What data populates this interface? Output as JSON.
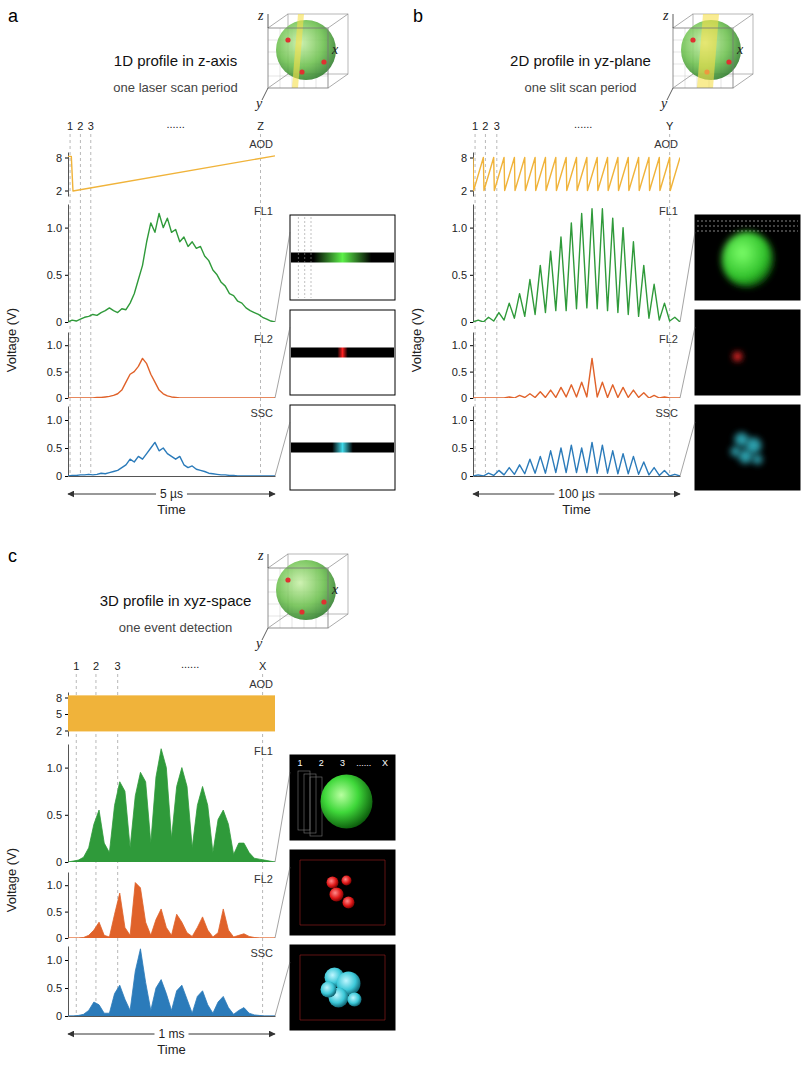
{
  "chart_data": [
    {
      "type": "line",
      "panel": "a",
      "title": "1D profile in z-axis",
      "subtitle": "one laser scan period",
      "axis_icon": [
        "z",
        "x",
        "y"
      ],
      "xlabel": "Time",
      "ylabel": "Voltage (V)",
      "duration": "5 µs",
      "xlim": [
        0,
        5
      ],
      "tick_labels": "y",
      "ellipsis": "......",
      "markers": [
        {
          "label": "1",
          "x": 0.05
        },
        {
          "label": "2",
          "x": 0.3
        },
        {
          "label": "3",
          "x": 0.55
        },
        {
          "label": "Z",
          "x": 4.65
        }
      ],
      "x": [
        0,
        0.1,
        0.2,
        0.3,
        0.4,
        0.5,
        0.6,
        0.7,
        0.8,
        0.9,
        1,
        1.1,
        1.2,
        1.3,
        1.4,
        1.5,
        1.6,
        1.7,
        1.8,
        1.9,
        2,
        2.1,
        2.2,
        2.3,
        2.4,
        2.5,
        2.6,
        2.7,
        2.8,
        2.9,
        3,
        3.1,
        3.2,
        3.3,
        3.4,
        3.5,
        3.6,
        3.7,
        3.8,
        3.9,
        4,
        4.1,
        4.2,
        4.3,
        4.4,
        4.5,
        4.6,
        4.7,
        4.8,
        4.9,
        5
      ],
      "series": [
        {
          "name": "AOD",
          "color": "#f0b33a",
          "ylim": [
            1,
            9
          ],
          "yticks": [
            2,
            8
          ],
          "x": [
            0,
            0.08,
            0.12,
            5
          ],
          "values": [
            8.2,
            8.2,
            1.9,
            8.3
          ]
        },
        {
          "name": "FL1",
          "color": "#2f9a3a",
          "ylim": [
            0,
            1.25
          ],
          "yticks": [
            0,
            0.5,
            {
              "value": 1,
              "label": "1.0"
            }
          ],
          "values": [
            0,
            0.02,
            0.01,
            0.03,
            0.05,
            0.06,
            0.08,
            0.07,
            0.1,
            0.12,
            0.15,
            0.12,
            0.1,
            0.14,
            0.13,
            0.2,
            0.3,
            0.45,
            0.6,
            0.85,
            1.05,
            0.95,
            1.15,
            1,
            1.1,
            0.95,
            0.98,
            0.85,
            0.9,
            0.8,
            0.85,
            0.78,
            0.8,
            0.7,
            0.65,
            0.55,
            0.5,
            0.42,
            0.38,
            0.3,
            0.28,
            0.22,
            0.2,
            0.15,
            0.12,
            0.1,
            0.08,
            0.05,
            0.03,
            0.01,
            0
          ]
        },
        {
          "name": "FL2",
          "color": "#e0622a",
          "ylim": [
            0,
            1.25
          ],
          "yticks": [
            0,
            0.5,
            {
              "value": 1,
              "label": "1.0"
            }
          ],
          "values": [
            0,
            0,
            0,
            0,
            0,
            0,
            0,
            0.01,
            0.01,
            0.02,
            0.03,
            0.05,
            0.08,
            0.15,
            0.3,
            0.45,
            0.5,
            0.6,
            0.75,
            0.65,
            0.45,
            0.3,
            0.15,
            0.08,
            0.04,
            0.02,
            0.01,
            0,
            0,
            0,
            0,
            0,
            0,
            0,
            0,
            0,
            0,
            0,
            0,
            0,
            0,
            0,
            0,
            0,
            0,
            0,
            0,
            0,
            0,
            0,
            0
          ]
        },
        {
          "name": "SSC",
          "color": "#2b7bba",
          "ylim": [
            0,
            1.25
          ],
          "yticks": [
            0,
            0.5,
            {
              "value": 1,
              "label": "1.0"
            }
          ],
          "values": [
            0,
            0.01,
            0.01,
            0.02,
            0.02,
            0.03,
            0.02,
            0.03,
            0.05,
            0.04,
            0.06,
            0.08,
            0.1,
            0.15,
            0.2,
            0.3,
            0.25,
            0.35,
            0.3,
            0.4,
            0.5,
            0.6,
            0.45,
            0.5,
            0.4,
            0.35,
            0.3,
            0.35,
            0.2,
            0.15,
            0.18,
            0.12,
            0.1,
            0.08,
            0.05,
            0.04,
            0.03,
            0.02,
            0.02,
            0.01,
            0.01,
            0,
            0,
            0,
            0,
            0,
            0,
            0,
            0,
            0,
            0
          ]
        }
      ]
    },
    {
      "type": "line",
      "panel": "b",
      "title": "2D profile in yz-plane",
      "subtitle": "one slit scan period",
      "axis_icon": [
        "z",
        "x",
        "y"
      ],
      "xlabel": "Time",
      "ylabel": "Voltage (V)",
      "duration": "100 µs",
      "xlim": [
        0,
        100
      ],
      "tick_labels": "y",
      "ellipsis": "......",
      "markers": [
        {
          "label": "1",
          "x": 1
        },
        {
          "label": "2",
          "x": 6
        },
        {
          "label": "3",
          "x": 11.5
        },
        {
          "label": "Y",
          "x": 95
        }
      ],
      "x": [
        0,
        2.5,
        5,
        7.5,
        10,
        12.5,
        15,
        17.5,
        20,
        22.5,
        25,
        27.5,
        30,
        32.5,
        35,
        37.5,
        40,
        42.5,
        45,
        47.5,
        50,
        52.5,
        55,
        57.5,
        60,
        62.5,
        65,
        67.5,
        70,
        72.5,
        75,
        77.5,
        80,
        82.5,
        85,
        87.5,
        90,
        92.5,
        95,
        97.5,
        100
      ],
      "series": [
        {
          "name": "AOD",
          "color": "#f0b33a",
          "ylim": [
            1,
            9
          ],
          "yticks": [
            2,
            8
          ],
          "x": [
            0,
            0.3,
            5,
            5.3,
            10,
            10.3,
            15,
            15.3,
            20,
            20.3,
            25,
            25.3,
            30,
            30.3,
            35,
            35.3,
            40,
            40.3,
            45,
            45.3,
            50,
            50.3,
            55,
            55.3,
            60,
            60.3,
            65,
            65.3,
            70,
            70.3,
            75,
            75.3,
            80,
            80.3,
            85,
            85.3,
            90,
            90.3,
            95,
            95.3,
            100
          ],
          "values": [
            8,
            2,
            8,
            2,
            8,
            2,
            8,
            2,
            8,
            2,
            8,
            2,
            8,
            2,
            8,
            2,
            8,
            2,
            8,
            2,
            8,
            2,
            8,
            2,
            8,
            2,
            8,
            2,
            8,
            2,
            8,
            2,
            8,
            2,
            8,
            2,
            8,
            2,
            8,
            2,
            8
          ]
        },
        {
          "name": "FL1",
          "color": "#2f9a3a",
          "ylim": [
            0,
            1.25
          ],
          "yticks": [
            0,
            0.5,
            {
              "value": 1,
              "label": "1.0"
            }
          ],
          "values": [
            0,
            0.02,
            0,
            0.05,
            0.01,
            0.1,
            0.02,
            0.2,
            0.04,
            0.3,
            0.06,
            0.45,
            0.08,
            0.6,
            0.1,
            0.75,
            0.12,
            0.9,
            0.12,
            1.05,
            0.14,
            1.15,
            0.15,
            1.2,
            0.14,
            1.2,
            0.12,
            1.1,
            0.1,
            1,
            0.08,
            0.85,
            0.06,
            0.6,
            0.04,
            0.4,
            0.02,
            0.2,
            0.01,
            0.05,
            0
          ]
        },
        {
          "name": "FL2",
          "color": "#e0622a",
          "ylim": [
            0,
            1.25
          ],
          "yticks": [
            0,
            0.5,
            {
              "value": 1,
              "label": "1.0"
            }
          ],
          "values": [
            0,
            0,
            0,
            0,
            0,
            0,
            0,
            0.02,
            0,
            0.05,
            0.01,
            0.08,
            0.01,
            0.12,
            0.01,
            0.15,
            0.01,
            0.2,
            0.02,
            0.25,
            0.02,
            0.3,
            0.02,
            0.75,
            0.02,
            0.3,
            0.01,
            0.25,
            0.01,
            0.2,
            0.01,
            0.15,
            0.01,
            0.1,
            0,
            0.05,
            0,
            0.02,
            0,
            0,
            0
          ]
        },
        {
          "name": "SSC",
          "color": "#2b7bba",
          "ylim": [
            0,
            1.25
          ],
          "yticks": [
            0,
            0.5,
            {
              "value": 1,
              "label": "1.0"
            }
          ],
          "values": [
            0,
            0.02,
            0,
            0.05,
            0.01,
            0.1,
            0.02,
            0.15,
            0.03,
            0.2,
            0.04,
            0.3,
            0.05,
            0.35,
            0.05,
            0.45,
            0.06,
            0.5,
            0.06,
            0.55,
            0.06,
            0.5,
            0.06,
            0.6,
            0.05,
            0.55,
            0.05,
            0.45,
            0.04,
            0.4,
            0.04,
            0.35,
            0.03,
            0.25,
            0.02,
            0.15,
            0.01,
            0.1,
            0,
            0.03,
            0
          ]
        }
      ]
    },
    {
      "type": "line",
      "panel": "c",
      "title": "3D profile in xyz-space",
      "subtitle": "one event detection",
      "axis_icon": [
        "z",
        "x",
        "y"
      ],
      "xlabel": "Time",
      "ylabel": "Voltage (V)",
      "duration": "1 ms",
      "xlim": [
        0,
        1000
      ],
      "tick_labels": "y",
      "ellipsis": "......",
      "inset_labels": [
        "1",
        "2",
        "3",
        "......",
        "X"
      ],
      "markers": [
        {
          "label": "1",
          "x": 40
        },
        {
          "label": "2",
          "x": 135
        },
        {
          "label": "3",
          "x": 240
        },
        {
          "label": "X",
          "x": 940
        }
      ],
      "x": [
        0,
        25,
        50,
        75,
        100,
        125,
        150,
        175,
        200,
        225,
        250,
        275,
        300,
        325,
        350,
        375,
        400,
        425,
        450,
        475,
        500,
        525,
        550,
        575,
        600,
        625,
        650,
        675,
        700,
        725,
        750,
        775,
        800,
        825,
        850,
        875,
        900,
        925,
        950,
        975,
        1000
      ],
      "series": [
        {
          "name": "AOD",
          "color": "#f0b33a",
          "type": "area",
          "ylim": [
            1,
            9
          ],
          "yticks": [
            2,
            5,
            8
          ],
          "x": [
            0,
            1000
          ],
          "values": [
            8.3,
            8.3
          ],
          "base": [
            1.9,
            1.9
          ]
        },
        {
          "name": "FL1",
          "color": "#2f9a3a",
          "type": "area",
          "ylim": [
            0,
            1.25
          ],
          "yticks": [
            0,
            0.5,
            {
              "value": 1,
              "label": "1.0"
            }
          ],
          "values": [
            0,
            0.01,
            0.02,
            0.05,
            0.15,
            0.4,
            0.55,
            0.2,
            0.1,
            0.6,
            0.85,
            0.75,
            0.15,
            0.7,
            0.95,
            0.85,
            0.2,
            0.9,
            1.2,
            1,
            0.25,
            0.8,
            1,
            0.8,
            0.15,
            0.6,
            0.8,
            0.6,
            0.1,
            0.45,
            0.55,
            0.4,
            0.08,
            0.2,
            0.2,
            0.1,
            0.04,
            0.03,
            0.02,
            0.01,
            0
          ]
        },
        {
          "name": "FL2",
          "color": "#e0622a",
          "type": "area",
          "ylim": [
            0,
            1.25
          ],
          "yticks": [
            0,
            0.5,
            {
              "value": 1,
              "label": "1.0"
            }
          ],
          "values": [
            0,
            0,
            0,
            0.01,
            0.05,
            0.15,
            0.3,
            0.05,
            0.02,
            0.45,
            0.85,
            0.2,
            0.05,
            1.05,
            0.95,
            0.3,
            0.05,
            0.35,
            0.55,
            0.2,
            0.05,
            0.45,
            0.3,
            0.1,
            0.03,
            0.2,
            0.4,
            0.15,
            0.02,
            0.1,
            0.55,
            0.15,
            0.02,
            0.05,
            0.08,
            0.03,
            0.01,
            0,
            0,
            0,
            0
          ]
        },
        {
          "name": "SSC",
          "color": "#2b7bba",
          "type": "area",
          "ylim": [
            0,
            1.25
          ],
          "yticks": [
            0,
            0.5,
            {
              "value": 1,
              "label": "1.0"
            }
          ],
          "values": [
            0,
            0,
            0.01,
            0.03,
            0.1,
            0.25,
            0.2,
            0.05,
            0.05,
            0.4,
            0.55,
            0.3,
            0.1,
            0.8,
            1.2,
            0.6,
            0.1,
            0.5,
            0.65,
            0.4,
            0.1,
            0.45,
            0.55,
            0.3,
            0.05,
            0.35,
            0.45,
            0.2,
            0.05,
            0.25,
            0.35,
            0.15,
            0.03,
            0.1,
            0.15,
            0.05,
            0.02,
            0.01,
            0,
            0,
            0
          ]
        }
      ]
    }
  ]
}
